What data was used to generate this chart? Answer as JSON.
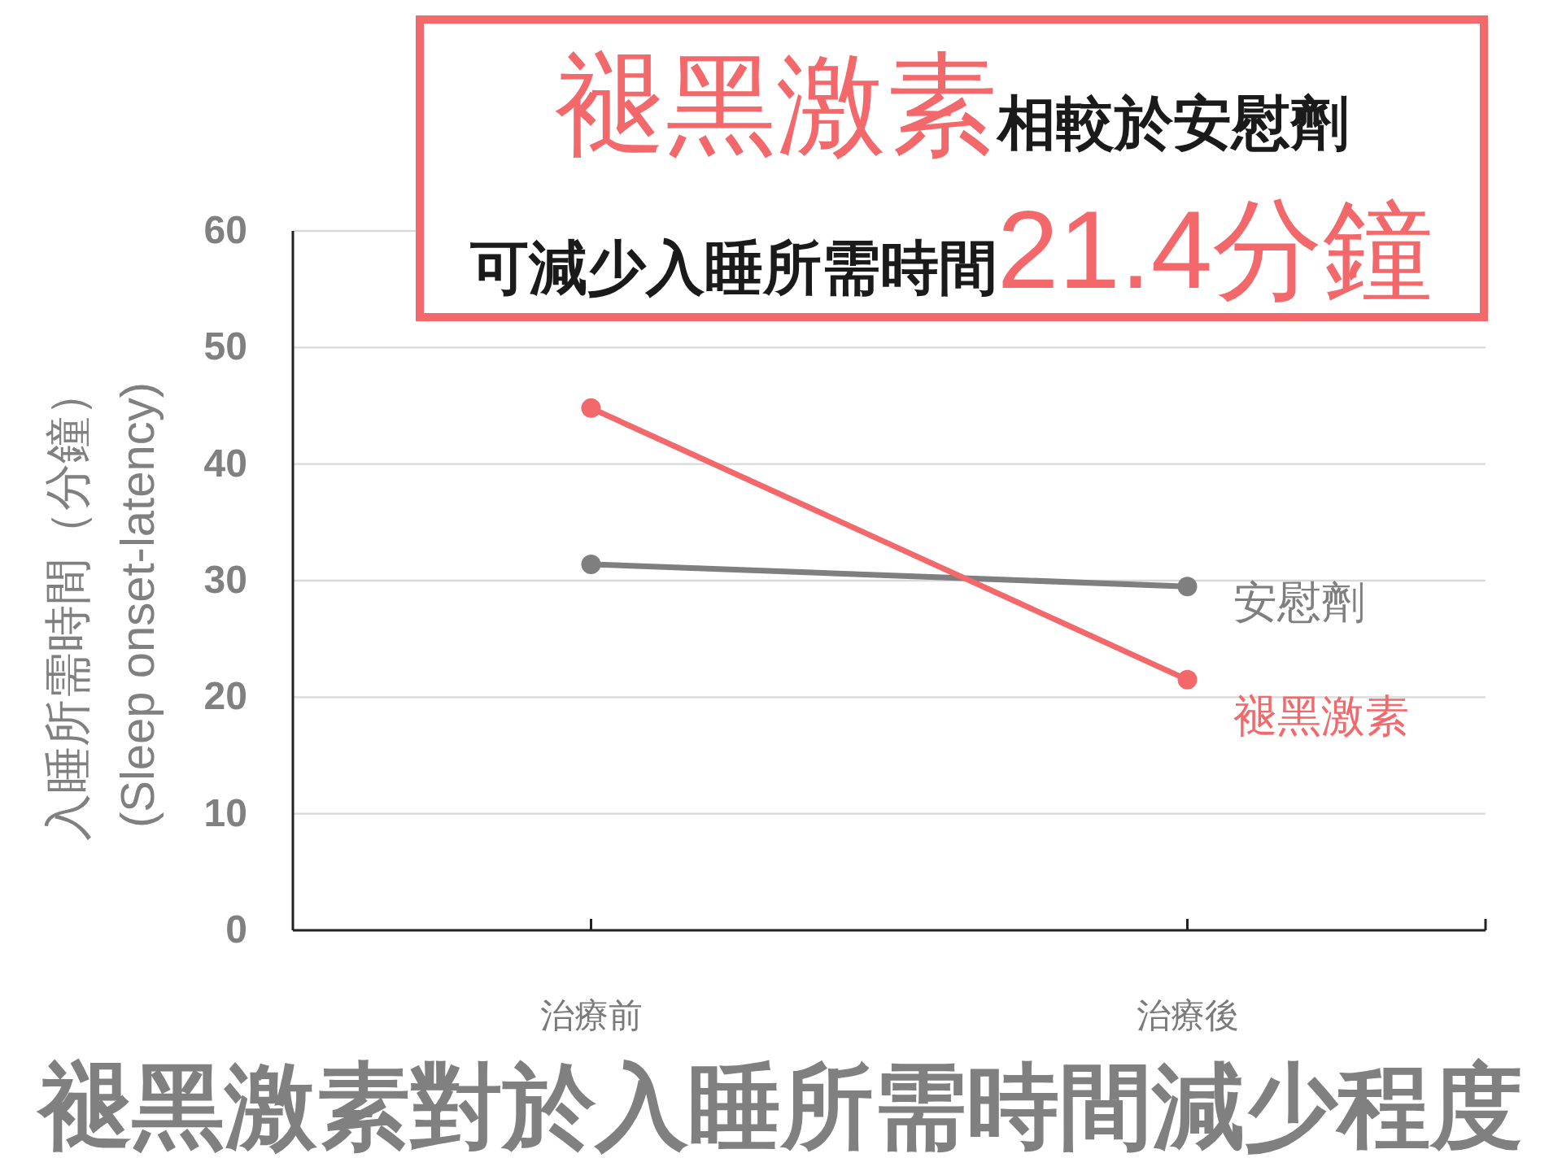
{
  "chart_data": {
    "type": "line",
    "title": "褪黑激素對於入睡所需時間減少程度",
    "ylabel": "入睡所需時間（分鐘）\n(Sleep onset-latency)",
    "annotations": [
      "褪黑激素",
      "相較於安慰劑",
      "可減少入睡所需時間",
      "21.4分鐘"
    ],
    "categories": [
      "治療前",
      "治療後"
    ],
    "series": [
      {
        "name": "安慰劑",
        "color": "#7f7f7f",
        "values": [
          31.4,
          29.5
        ]
      },
      {
        "name": "褪黑激素",
        "color": "#f2686b",
        "values": [
          44.8,
          21.5
        ]
      }
    ],
    "ylim": [
      0,
      60
    ],
    "yticks": [
      0,
      10,
      20,
      30,
      40,
      50,
      60
    ],
    "grid": "y",
    "marker": "circle",
    "line_style": "solid"
  }
}
